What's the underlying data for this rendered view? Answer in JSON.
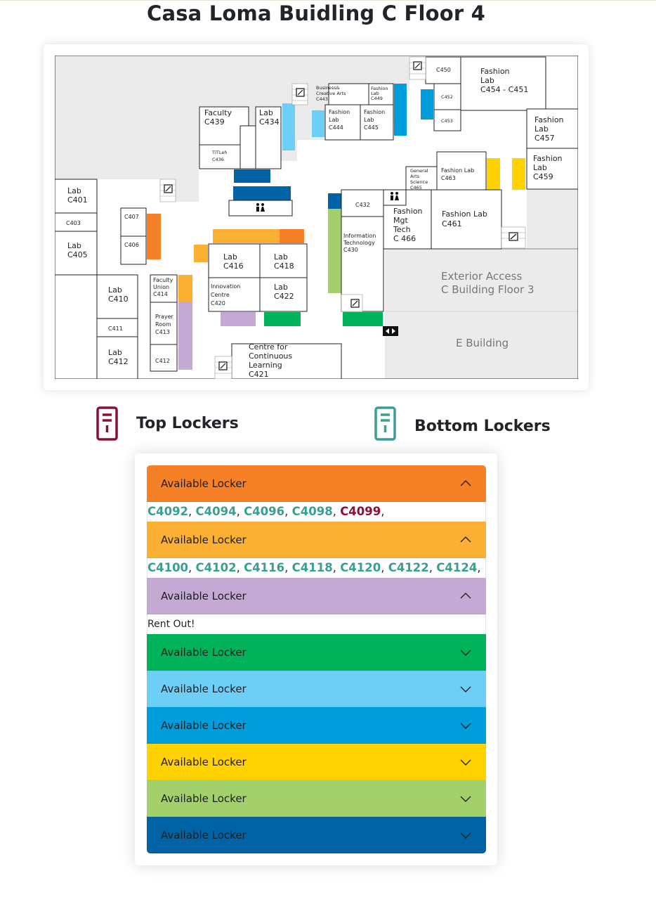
{
  "page": {
    "title": "Casa Loma Buidling C Floor 4"
  },
  "map": {
    "rooms": {
      "c401": [
        "Lab",
        "C401"
      ],
      "c403": [
        "C403"
      ],
      "c405": [
        "Lab",
        "C405"
      ],
      "c407": [
        "C407"
      ],
      "c406": [
        "C406"
      ],
      "c410": [
        "Lab",
        "C410"
      ],
      "c411": [
        "C411"
      ],
      "c412a": [
        "Lab",
        "C412"
      ],
      "c414": [
        "Faculty",
        "Union",
        "C414"
      ],
      "c413": [
        "Prayer",
        "Room",
        "C413"
      ],
      "c412b": [
        "C412"
      ],
      "c439": [
        "Faculty",
        "C439"
      ],
      "c434": [
        "Lab",
        "C434"
      ],
      "c436": [
        "TITLeh",
        "C436"
      ],
      "c443": [
        "Business&",
        "Creative Arts",
        "C443"
      ],
      "c449": [
        "Fashion",
        "Lab",
        "C449"
      ],
      "c444": [
        "Fashion",
        "Lab",
        "C444"
      ],
      "c445": [
        "Fashion",
        "Lab",
        "C445"
      ],
      "c450": [
        "C450"
      ],
      "c452": [
        "C452"
      ],
      "c453": [
        "C453"
      ],
      "c454": [
        "Fashion",
        "Lab",
        "C454 - C451"
      ],
      "c457": [
        "Fashion",
        "Lab",
        "C457"
      ],
      "c459": [
        "Fashion",
        "Lab",
        "C459"
      ],
      "c465": [
        "General",
        "Arts",
        "Science",
        "C465"
      ],
      "c463": [
        "Fashion Lab",
        "C463"
      ],
      "c432": [
        "C432"
      ],
      "c466": [
        "Fashion",
        "Mgt",
        "Tech",
        "C 466"
      ],
      "c461": [
        "Fashion Lab",
        "C461"
      ],
      "c430": [
        "Information",
        "Technology",
        "C430"
      ],
      "c416": [
        "Lab",
        "C416"
      ],
      "c418": [
        "Lab",
        "C418"
      ],
      "c420": [
        "Innovation",
        "Centre",
        "C420"
      ],
      "c422": [
        "Lab",
        "C422"
      ],
      "c421": [
        "Centre for",
        "Continuous",
        "Learning",
        "C421"
      ]
    },
    "areas": {
      "exterior": [
        "Exterior Access",
        "C Building Floor 3"
      ],
      "ebuilding": [
        "E Building"
      ]
    }
  },
  "legend": {
    "top": {
      "label": "Top Lockers",
      "color": "#8a0e3a",
      "icon": "locker-icon"
    },
    "bottom": {
      "label": "Bottom Lockers",
      "color": "#3a9e93",
      "icon": "locker-icon"
    }
  },
  "accordion": {
    "sections": [
      {
        "title": "Available Locker",
        "color": "#f58025",
        "expanded": true,
        "lockers": [
          {
            "id": "C4092",
            "type": "bottom"
          },
          {
            "id": "C4094",
            "type": "bottom"
          },
          {
            "id": "C4096",
            "type": "bottom"
          },
          {
            "id": "C4098",
            "type": "bottom"
          },
          {
            "id": "C4099",
            "type": "top"
          }
        ]
      },
      {
        "title": "Available Locker",
        "color": "#fbb034",
        "expanded": true,
        "lockers": [
          {
            "id": "C4100",
            "type": "bottom"
          },
          {
            "id": "C4102",
            "type": "bottom"
          },
          {
            "id": "C4116",
            "type": "bottom"
          },
          {
            "id": "C4118",
            "type": "bottom"
          },
          {
            "id": "C4120",
            "type": "bottom"
          },
          {
            "id": "C4122",
            "type": "bottom"
          },
          {
            "id": "C4124",
            "type": "bottom"
          }
        ]
      },
      {
        "title": "Available Locker",
        "color": "#c3a9d4",
        "expanded": true,
        "text": "Rent Out!"
      },
      {
        "title": "Available Locker",
        "color": "#00b25a",
        "expanded": false
      },
      {
        "title": "Available Locker",
        "color": "#6dcff6",
        "expanded": false
      },
      {
        "title": "Available Locker",
        "color": "#009ddc",
        "expanded": false
      },
      {
        "title": "Available Locker",
        "color": "#ffd200",
        "expanded": false
      },
      {
        "title": "Available Locker",
        "color": "#a3d06a",
        "expanded": false
      },
      {
        "title": "Available Locker",
        "color": "#0063a6",
        "expanded": false
      }
    ]
  }
}
